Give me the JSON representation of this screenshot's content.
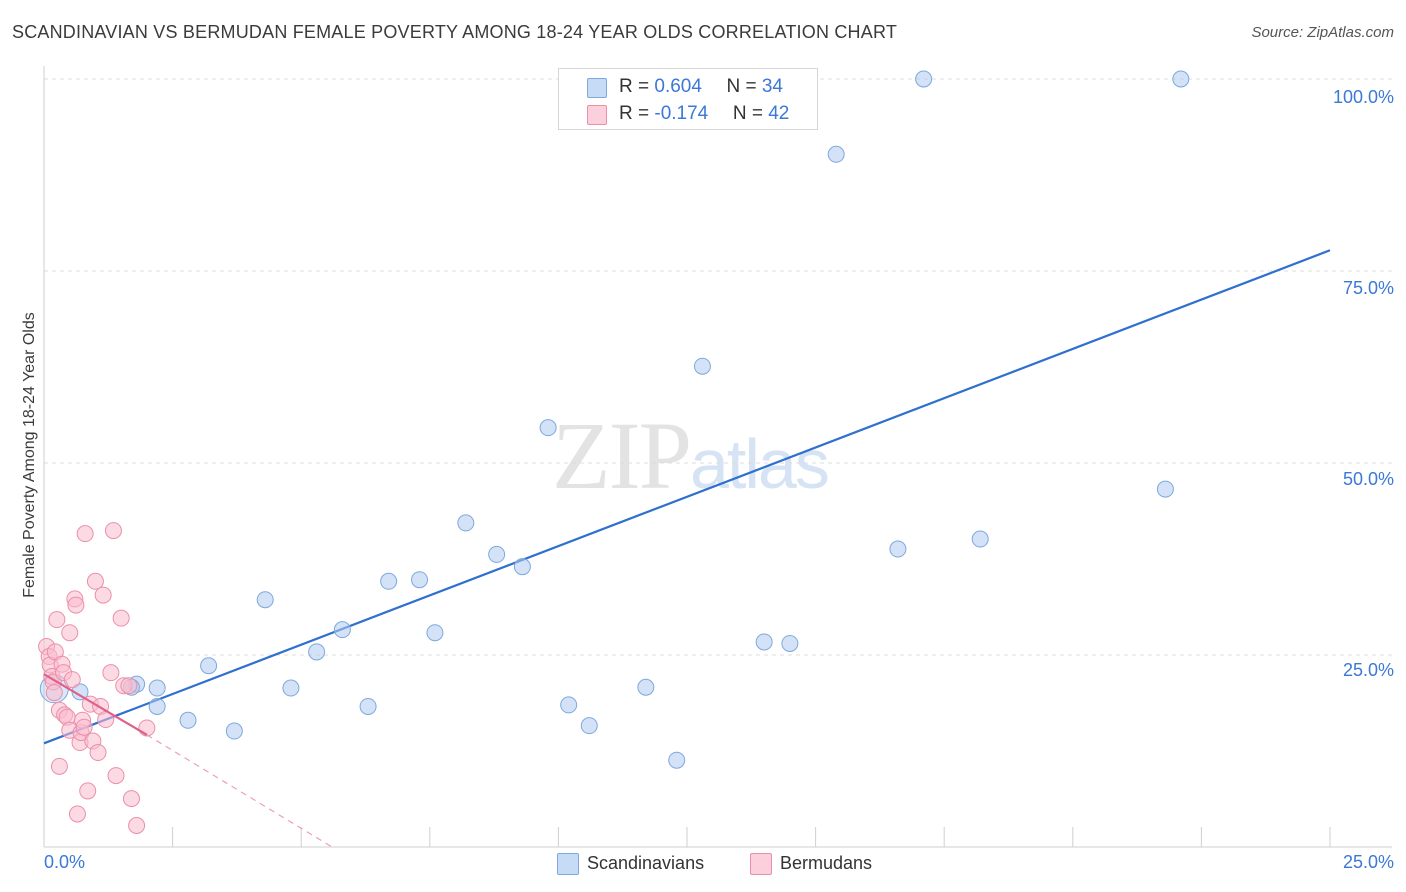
{
  "title": "SCANDINAVIAN VS BERMUDAN FEMALE POVERTY AMONG 18-24 YEAR OLDS CORRELATION CHART",
  "source": "Source: ZipAtlas.com",
  "watermark": {
    "zip": "ZIP",
    "atlas": "atlas"
  },
  "legend_top": {
    "rows": [
      {
        "r_label": "R = ",
        "r_value": "0.604",
        "n_label": "N = ",
        "n_value": "34",
        "color": "#aecbf0"
      },
      {
        "r_label": "R = ",
        "r_value": "-0.174",
        "n_label": "N = ",
        "n_value": "42",
        "color": "#f9bccd"
      }
    ]
  },
  "legend_bottom": [
    {
      "label": "Scandinavians",
      "color": "#aecbf0"
    },
    {
      "label": "Bermudans",
      "color": "#f9bccd"
    }
  ],
  "x_tick_labels": {
    "left": "0.0%",
    "right": "25.0%"
  },
  "chart_data": {
    "type": "scatter",
    "title": "SCANDINAVIAN VS BERMUDAN FEMALE POVERTY AMONG 18-24 YEAR OLDS CORRELATION CHART",
    "xlabel": "",
    "ylabel": "Female Poverty Among 18-24 Year Olds",
    "xlim": [
      0,
      25
    ],
    "ylim": [
      0,
      102
    ],
    "y_ticks": [
      {
        "value": 25,
        "label": "25.0%"
      },
      {
        "value": 50,
        "label": "50.0%"
      },
      {
        "value": 75,
        "label": "75.0%"
      },
      {
        "value": 100,
        "label": "100.0%"
      }
    ],
    "grid": true,
    "series": [
      {
        "name": "Scandinavians",
        "color": "#aecbf0",
        "stroke": "#7ea8dd",
        "trend": {
          "x": [
            0,
            25
          ],
          "y": [
            13.5,
            77.7
          ],
          "color": "#2f6fce"
        },
        "points": [
          {
            "x": 0.2,
            "y": 20.6,
            "big": true
          },
          {
            "x": 0.7,
            "y": 20.2
          },
          {
            "x": 1.8,
            "y": 21.2
          },
          {
            "x": 1.7,
            "y": 20.8
          },
          {
            "x": 2.2,
            "y": 20.7
          },
          {
            "x": 2.2,
            "y": 18.3
          },
          {
            "x": 2.8,
            "y": 16.5
          },
          {
            "x": 3.2,
            "y": 23.6
          },
          {
            "x": 3.7,
            "y": 15.1
          },
          {
            "x": 4.3,
            "y": 32.2
          },
          {
            "x": 4.8,
            "y": 20.7
          },
          {
            "x": 5.3,
            "y": 25.4
          },
          {
            "x": 5.8,
            "y": 28.3
          },
          {
            "x": 6.3,
            "y": 18.3
          },
          {
            "x": 6.7,
            "y": 34.6
          },
          {
            "x": 7.3,
            "y": 34.8
          },
          {
            "x": 7.6,
            "y": 27.9
          },
          {
            "x": 8.2,
            "y": 42.2
          },
          {
            "x": 8.8,
            "y": 38.1
          },
          {
            "x": 9.3,
            "y": 36.5
          },
          {
            "x": 9.8,
            "y": 54.6
          },
          {
            "x": 10.2,
            "y": 18.5
          },
          {
            "x": 10.6,
            "y": 15.8
          },
          {
            "x": 11.7,
            "y": 20.8
          },
          {
            "x": 12.3,
            "y": 11.3
          },
          {
            "x": 12.8,
            "y": 62.6
          },
          {
            "x": 14.0,
            "y": 26.7
          },
          {
            "x": 14.5,
            "y": 26.5
          },
          {
            "x": 15.4,
            "y": 90.2
          },
          {
            "x": 16.6,
            "y": 38.8
          },
          {
            "x": 17.1,
            "y": 100.0
          },
          {
            "x": 18.2,
            "y": 40.1
          },
          {
            "x": 21.8,
            "y": 46.6
          },
          {
            "x": 22.1,
            "y": 100.0
          }
        ]
      },
      {
        "name": "Bermudans",
        "color": "#f9bccd",
        "stroke": "#ec8fa9",
        "trend": {
          "x": [
            0,
            2.0
          ],
          "y": [
            22.5,
            14.6
          ],
          "color": "#e0608a",
          "dashed_extension": {
            "x": [
              2.0,
              5.6
            ],
            "y": [
              14.6,
              0.0
            ]
          }
        },
        "points": [
          {
            "x": 0.05,
            "y": 26.1
          },
          {
            "x": 0.1,
            "y": 24.8
          },
          {
            "x": 0.12,
            "y": 23.7
          },
          {
            "x": 0.15,
            "y": 22.2
          },
          {
            "x": 0.18,
            "y": 21.5
          },
          {
            "x": 0.2,
            "y": 20.1
          },
          {
            "x": 0.22,
            "y": 25.4
          },
          {
            "x": 0.25,
            "y": 29.6
          },
          {
            "x": 0.3,
            "y": 17.8
          },
          {
            "x": 0.3,
            "y": 10.5
          },
          {
            "x": 0.35,
            "y": 23.8
          },
          {
            "x": 0.38,
            "y": 22.7
          },
          {
            "x": 0.4,
            "y": 17.2
          },
          {
            "x": 0.45,
            "y": 16.9
          },
          {
            "x": 0.5,
            "y": 27.9
          },
          {
            "x": 0.5,
            "y": 15.2
          },
          {
            "x": 0.55,
            "y": 21.8
          },
          {
            "x": 0.6,
            "y": 32.3
          },
          {
            "x": 0.62,
            "y": 31.5
          },
          {
            "x": 0.65,
            "y": 4.3
          },
          {
            "x": 0.7,
            "y": 13.6
          },
          {
            "x": 0.72,
            "y": 14.9
          },
          {
            "x": 0.75,
            "y": 16.5
          },
          {
            "x": 0.78,
            "y": 15.6
          },
          {
            "x": 0.8,
            "y": 40.8
          },
          {
            "x": 0.85,
            "y": 7.3
          },
          {
            "x": 0.9,
            "y": 18.6
          },
          {
            "x": 0.95,
            "y": 13.8
          },
          {
            "x": 1.0,
            "y": 34.6
          },
          {
            "x": 1.05,
            "y": 12.3
          },
          {
            "x": 1.1,
            "y": 18.3
          },
          {
            "x": 1.15,
            "y": 32.8
          },
          {
            "x": 1.2,
            "y": 16.6
          },
          {
            "x": 1.3,
            "y": 22.7
          },
          {
            "x": 1.35,
            "y": 41.2
          },
          {
            "x": 1.4,
            "y": 9.3
          },
          {
            "x": 1.5,
            "y": 29.8
          },
          {
            "x": 1.55,
            "y": 21.0
          },
          {
            "x": 1.65,
            "y": 21.0
          },
          {
            "x": 1.7,
            "y": 6.3
          },
          {
            "x": 1.8,
            "y": 2.8
          },
          {
            "x": 2.0,
            "y": 15.5
          }
        ]
      }
    ]
  }
}
